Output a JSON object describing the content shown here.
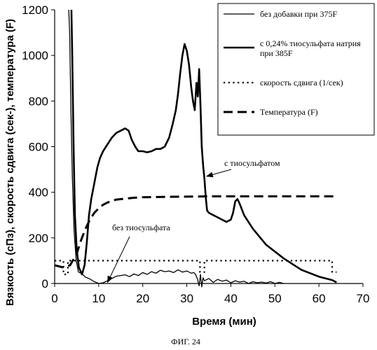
{
  "figure_caption": "ФИГ. 24",
  "chart_data": {
    "type": "line",
    "xlabel": "Время (мин)",
    "ylabel": "Вязкость (сПз), скорость сдвига (сек-), температура (F)",
    "xlim": [
      0,
      70
    ],
    "ylim": [
      0,
      1200
    ],
    "x_ticks": [
      0,
      10,
      20,
      30,
      40,
      50,
      60,
      70
    ],
    "y_ticks": [
      0,
      200,
      400,
      600,
      800,
      1000,
      1200
    ],
    "grid": false,
    "legend_position": "top-right",
    "series": [
      {
        "name": "без добавки при 375F",
        "style": "solid-thin",
        "color": "#000000",
        "x": [
          3.2,
          3.4,
          3.7,
          4.0,
          4.4,
          4.9,
          5.4,
          6.0,
          7.0,
          8.0,
          9.0,
          10.0,
          11.0,
          12.0,
          13.0,
          14.0,
          15.0,
          16.0,
          17.0,
          18.0,
          19.0,
          20.0,
          21.0,
          22.0,
          23.0,
          24.0,
          25.0,
          26.0,
          27.0,
          28.0,
          29.0,
          30.0,
          31.0,
          31.6,
          32.0,
          32.4,
          32.8,
          33.1,
          33.4,
          33.7,
          34.0,
          35.0,
          36.0,
          37.0,
          38.0,
          39.0,
          40.0,
          41.0,
          42.0,
          43.0,
          44.0,
          45.0,
          46.0,
          47.0,
          48.0,
          49.0,
          50.0,
          51.0,
          52.0
        ],
        "y": [
          1200,
          1100,
          750,
          480,
          230,
          100,
          50,
          45,
          28,
          20,
          8,
          0,
          3,
          12,
          22,
          32,
          35,
          38,
          30,
          42,
          35,
          48,
          40,
          52,
          45,
          58,
          52,
          55,
          48,
          60,
          50,
          55,
          45,
          48,
          40,
          20,
          -10,
          40,
          -15,
          25,
          12,
          22,
          5,
          18,
          10,
          15,
          3,
          12,
          6,
          10,
          0,
          8,
          3,
          6,
          2,
          8,
          0,
          5,
          0
        ]
      },
      {
        "name": "с 0,24% тиосульфата натрия при 385F",
        "style": "solid-thick",
        "color": "#000000",
        "x": [
          3.8,
          4.0,
          4.3,
          4.6,
          5.0,
          5.5,
          6.2,
          6.8,
          7.3,
          7.8,
          8.3,
          9.0,
          9.7,
          10.3,
          11.0,
          12.0,
          13.0,
          14.0,
          15.0,
          16.0,
          16.8,
          17.5,
          18.3,
          19.0,
          20.0,
          21.0,
          22.0,
          23.0,
          24.0,
          25.0,
          26.0,
          26.8,
          27.5,
          28.0,
          28.5,
          29.0,
          29.5,
          30.0,
          30.5,
          31.0,
          31.4,
          31.8,
          32.2,
          32.5,
          32.8,
          33.1,
          33.4,
          33.7,
          34.0,
          34.3,
          34.6,
          35.0,
          36.0,
          37.0,
          38.0,
          39.0,
          40.0,
          40.5,
          41.0,
          41.5,
          42.0,
          43.0,
          45.0,
          48.0,
          52.0,
          56.0,
          60.0,
          63.0,
          64.0
        ],
        "y": [
          1200,
          1000,
          600,
          300,
          150,
          70,
          40,
          80,
          180,
          300,
          370,
          440,
          510,
          550,
          580,
          610,
          640,
          660,
          670,
          680,
          670,
          630,
          600,
          580,
          580,
          575,
          580,
          590,
          590,
          600,
          640,
          700,
          760,
          830,
          920,
          1000,
          1050,
          1020,
          960,
          860,
          800,
          760,
          880,
          820,
          940,
          780,
          600,
          520,
          460,
          380,
          320,
          310,
          300,
          290,
          280,
          270,
          280,
          310,
          360,
          370,
          350,
          300,
          240,
          170,
          110,
          60,
          30,
          15,
          5
        ]
      },
      {
        "name": "скорость сдвига (1/сек)",
        "style": "dotted",
        "color": "#000000",
        "x": [
          0.0,
          2.0,
          2.0,
          3.0,
          3.0,
          33.0,
          33.0,
          34.0,
          34.0,
          63.0,
          63.0,
          64.0
        ],
        "y": [
          100,
          100,
          40,
          40,
          100,
          100,
          50,
          50,
          100,
          100,
          50,
          50
        ]
      },
      {
        "name": "Температура (F)",
        "style": "dashed",
        "color": "#000000",
        "x": [
          0.0,
          2.0,
          3.5,
          5.0,
          6.0,
          7.0,
          8.0,
          9.0,
          10.0,
          11.0,
          12.0,
          13.0,
          14.0,
          16.0,
          18.0,
          20.0,
          25.0,
          30.0,
          35.0,
          40.0,
          50.0,
          60.0,
          64.0
        ],
        "y": [
          80,
          70,
          80,
          130,
          190,
          240,
          280,
          310,
          330,
          345,
          355,
          362,
          368,
          372,
          376,
          378,
          380,
          381,
          382,
          382,
          382,
          382,
          382
        ]
      }
    ],
    "annotations": [
      {
        "text": "с тиосульфатом",
        "arrow_to": [
          34.5,
          470
        ]
      },
      {
        "text": "без тиосульфата",
        "arrow_to": [
          12.0,
          5
        ]
      }
    ]
  }
}
